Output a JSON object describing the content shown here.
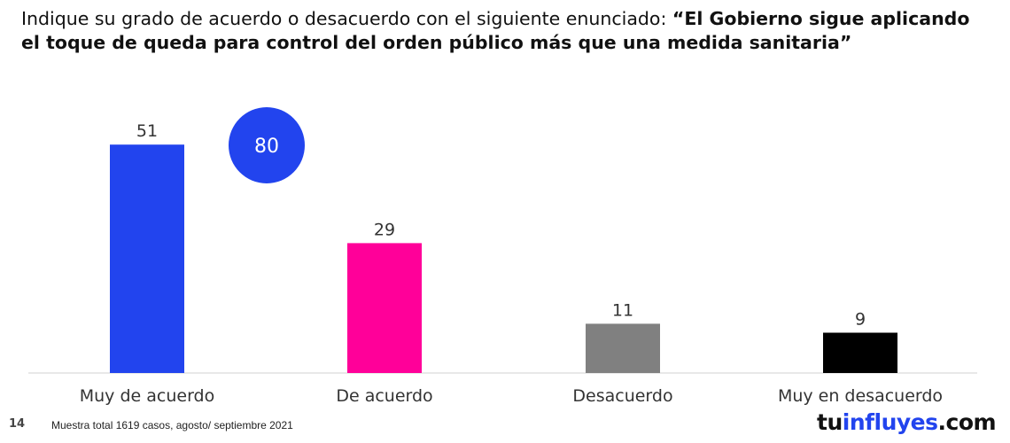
{
  "title": {
    "intro": "Indique su grado de acuerdo o desacuerdo con el siguiente enunciado: ",
    "question": "“El Gobierno sigue aplicando el toque de queda para control del orden público más que una medida sanitaria”"
  },
  "chart_data": {
    "type": "bar",
    "categories": [
      "Muy de acuerdo",
      "De acuerdo",
      "Desacuerdo",
      "Muy en desacuerdo"
    ],
    "values": [
      51,
      29,
      11,
      9
    ],
    "colors": [
      "#2244EE",
      "#FF0099",
      "#808080",
      "#000000"
    ],
    "ylim": [
      0,
      55
    ],
    "grid": false,
    "legend": "none",
    "annotation": {
      "text": "80",
      "color": "#2244EE"
    }
  },
  "footer": {
    "page_number": "14",
    "note": "Muestra total 1619 casos, agosto/ septiembre 2021"
  },
  "logo": {
    "part1": "tu",
    "part2": "influyes",
    "part3": ".com",
    "color_dark": "#111111",
    "color_accent": "#2244EE"
  }
}
